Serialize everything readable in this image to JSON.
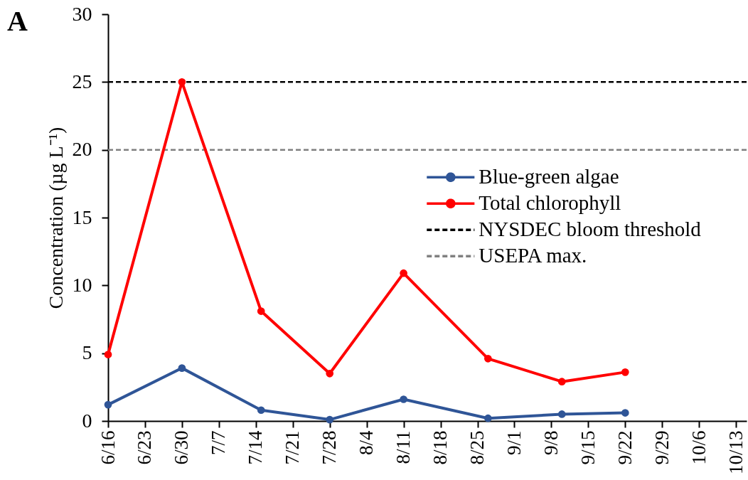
{
  "chart_data": {
    "type": "line",
    "ylabel": "Concentration (µg L⁻¹)",
    "annotations": [
      "A"
    ],
    "x": [
      "--06-16",
      "--06-30",
      "--07-15",
      "--07-28",
      "--08-11",
      "--08-27",
      "--09-10",
      "--09-22"
    ],
    "series": [
      {
        "name": "Blue-green algae",
        "color": "#2f5597",
        "values": [
          1.2,
          3.9,
          0.8,
          0.1,
          1.6,
          0.2,
          0.5,
          0.6
        ]
      },
      {
        "name": "Total chlorophyll",
        "color": "#ff0000",
        "values": [
          4.9,
          25,
          8.1,
          3.5,
          10.9,
          4.6,
          2.9,
          3.6
        ]
      }
    ],
    "xlim": [
      "--06-16",
      "--10-15"
    ],
    "xticks": [
      {
        "value": "--06-16",
        "label": "6/16"
      },
      {
        "value": "--06-23",
        "label": "6/23"
      },
      {
        "value": "--06-30",
        "label": "6/30"
      },
      {
        "value": "--07-07",
        "label": "7/7"
      },
      {
        "value": "--07-14",
        "label": "7/14"
      },
      {
        "value": "--07-21",
        "label": "7/21"
      },
      {
        "value": "--07-28",
        "label": "7/28"
      },
      {
        "value": "--08-04",
        "label": "8/4"
      },
      {
        "value": "--08-11",
        "label": "8/11"
      },
      {
        "value": "--08-18",
        "label": "8/18"
      },
      {
        "value": "--08-25",
        "label": "8/25"
      },
      {
        "value": "--09-01",
        "label": "9/1"
      },
      {
        "value": "--09-08",
        "label": "9/8"
      },
      {
        "value": "--09-15",
        "label": "9/15"
      },
      {
        "value": "--09-22",
        "label": "9/22"
      },
      {
        "value": "--09-29",
        "label": "9/29"
      },
      {
        "value": "--10-06",
        "label": "10/6"
      },
      {
        "value": "--10-13",
        "label": "10/13"
      }
    ],
    "ylim": [
      0,
      30
    ],
    "yticks": [
      0,
      5,
      10,
      15,
      20,
      25,
      30
    ],
    "ref_lines": [
      {
        "axis": "y",
        "value": 25,
        "label": "NYSDEC bloom threshold",
        "color": "#000000",
        "line_style": "dashed"
      },
      {
        "axis": "y",
        "value": 20,
        "label": "USEPA max.",
        "color": "#808080",
        "line_style": "dashed"
      }
    ],
    "legend": "right",
    "marker": "circle",
    "line_style": "solid"
  }
}
